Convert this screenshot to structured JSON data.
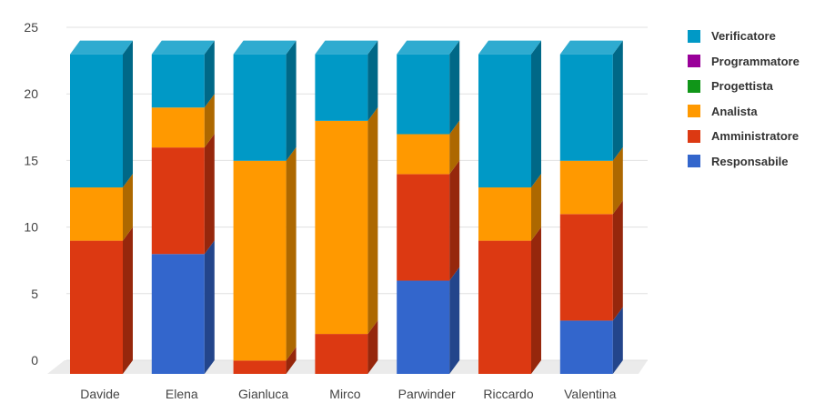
{
  "chart_data": {
    "type": "bar",
    "stacked": true,
    "style": "3d",
    "categories": [
      "Davide",
      "Elena",
      "Gianluca",
      "Mirco",
      "Parwinder",
      "Riccardo",
      "Valentina"
    ],
    "y_ticks": [
      "0",
      "5",
      "10",
      "15",
      "20",
      "25"
    ],
    "ylim": [
      0,
      25
    ],
    "grid": true,
    "legend_position": "right",
    "series": [
      {
        "name": "Responsabile",
        "color": "#3366cc",
        "values": [
          0,
          9,
          0,
          0,
          7,
          0,
          4
        ]
      },
      {
        "name": "Amministratore",
        "color": "#dc3912",
        "values": [
          10,
          8,
          1,
          3,
          8,
          10,
          8
        ]
      },
      {
        "name": "Analista",
        "color": "#ff9900",
        "values": [
          4,
          3,
          15,
          16,
          3,
          4,
          4
        ]
      },
      {
        "name": "Progettista",
        "color": "#109618",
        "values": [
          0,
          0,
          0,
          0,
          0,
          0,
          0
        ]
      },
      {
        "name": "Programmatore",
        "color": "#990099",
        "values": [
          0,
          0,
          0,
          0,
          0,
          0,
          0
        ]
      },
      {
        "name": "Verificatore",
        "color": "#0099c6",
        "values": [
          10,
          4,
          8,
          5,
          6,
          10,
          8
        ]
      }
    ],
    "legend_order": [
      "Verificatore",
      "Programmatore",
      "Progettista",
      "Analista",
      "Amministratore",
      "Responsabile"
    ]
  }
}
